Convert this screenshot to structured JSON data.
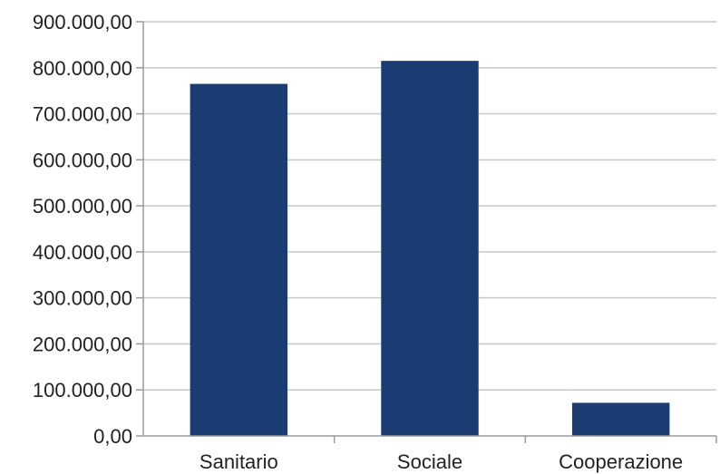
{
  "chart_data": {
    "type": "bar",
    "categories": [
      "Sanitario",
      "Sociale",
      "Cooperazione"
    ],
    "values": [
      765000,
      815000,
      72000
    ],
    "ylim": [
      0,
      900000
    ],
    "y_ticks": [
      0,
      100000,
      200000,
      300000,
      400000,
      500000,
      600000,
      700000,
      800000,
      900000
    ],
    "y_tick_labels": [
      "0,00",
      "100.000,00",
      "200.000,00",
      "300.000,00",
      "400.000,00",
      "500.000,00",
      "600.000,00",
      "700.000,00",
      "800.000,00",
      "900.000,00"
    ],
    "title": "",
    "xlabel": "",
    "ylabel": "",
    "grid": true,
    "legend": "none",
    "bar_color": "#1a3c72",
    "grid_color": "#c8c8c8",
    "axis_color": "#9a9a9a"
  }
}
